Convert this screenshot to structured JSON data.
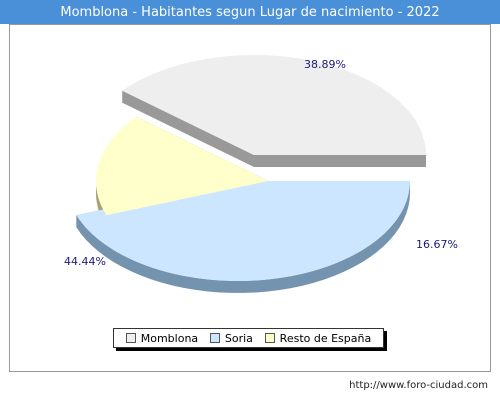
{
  "chart_data": {
    "type": "pie",
    "title": "Momblona - Habitantes segun Lugar de nacimiento - 2022",
    "categories": [
      "Momblona",
      "Soria",
      "Resto de España"
    ],
    "values": [
      38.89,
      44.44,
      16.67
    ],
    "labels": [
      "38.89%",
      "44.44%",
      "16.67%"
    ],
    "colors": [
      "#eeeeee",
      "#cce6ff",
      "#ffffcc"
    ],
    "side_colors": [
      "#999999",
      "#7393ae",
      "#a3a378"
    ],
    "legend_position": "bottom"
  },
  "footer": {
    "url": "http://www.foro-ciudad.com"
  }
}
